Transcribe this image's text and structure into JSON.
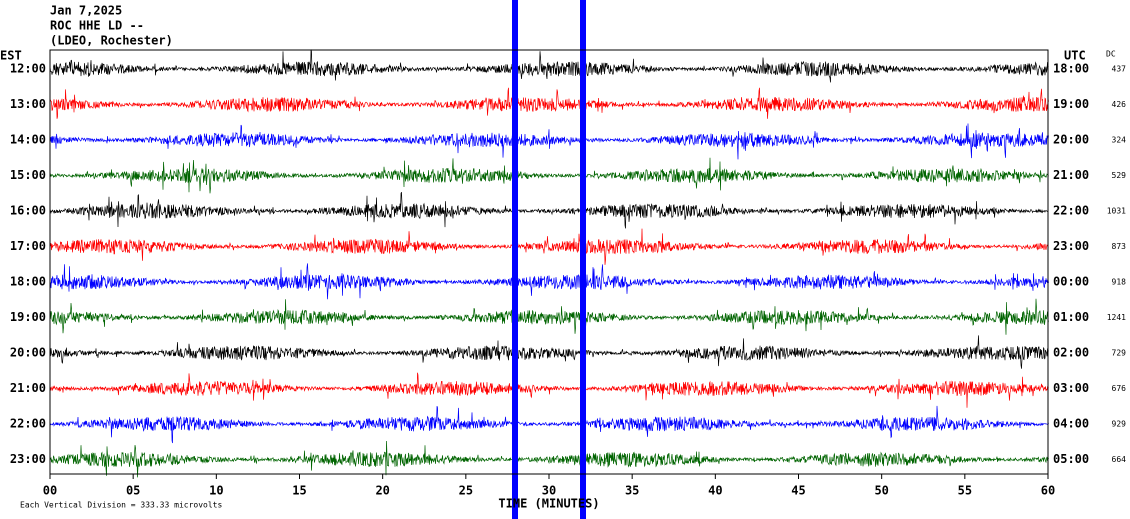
{
  "header": {
    "date": "Jan 7,2025",
    "station": "ROC HHE LD --",
    "network": "(LDEO, Rochester)"
  },
  "left_axis": {
    "title": "EST",
    "labels": [
      "12:00",
      "13:00",
      "14:00",
      "15:00",
      "16:00",
      "17:00",
      "18:00",
      "19:00",
      "20:00",
      "21:00",
      "22:00",
      "23:00"
    ]
  },
  "right_axis": {
    "title": "UTC",
    "labels": [
      "18:00",
      "19:00",
      "20:00",
      "21:00",
      "22:00",
      "23:00",
      "00:00",
      "01:00",
      "02:00",
      "03:00",
      "04:00",
      "05:00"
    ]
  },
  "dc": {
    "title": "DC",
    "values": [
      437,
      426,
      324,
      529,
      1031,
      873,
      918,
      1241,
      729,
      676,
      929,
      664
    ]
  },
  "x_axis": {
    "title": "TIME (MINUTES)",
    "labels": [
      "00",
      "05",
      "10",
      "15",
      "20",
      "25",
      "30",
      "35",
      "40",
      "45",
      "50",
      "55",
      "60"
    ]
  },
  "footer": "Each Vertical Division =  333.33 microvolts"
}
